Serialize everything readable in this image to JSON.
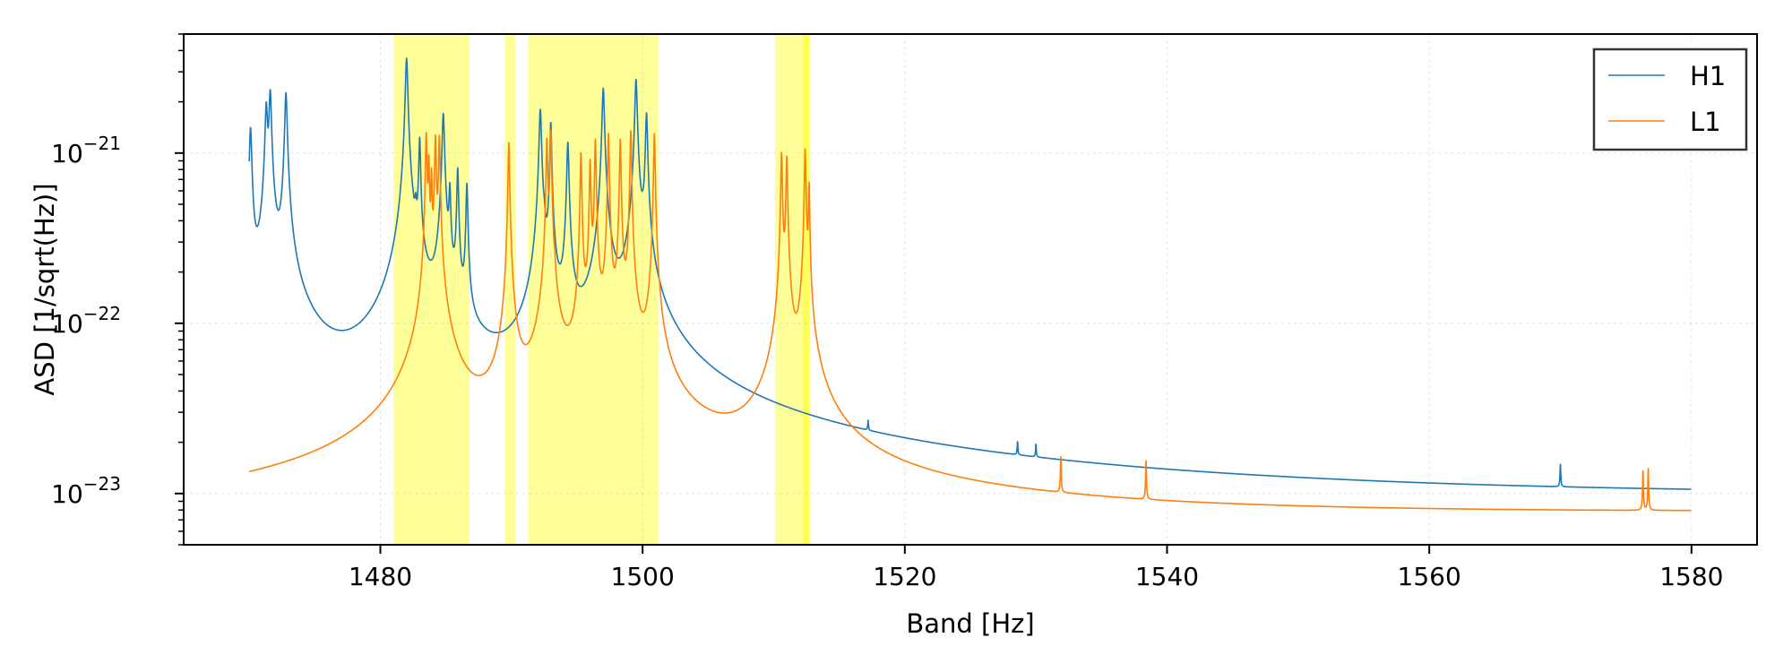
{
  "chart_data": {
    "type": "line",
    "xlabel": "Band [Hz]",
    "ylabel": "ASD [1/sqrt(Hz)]",
    "xlim": [
      1465,
      1585
    ],
    "ylim": [
      5e-24,
      5e-21
    ],
    "y_scale": "log",
    "grid": true,
    "legend_position": "top-right",
    "x_ticks": [
      1480,
      1500,
      1520,
      1540,
      1560,
      1580
    ],
    "x_tick_labels": [
      "1480",
      "1500",
      "1520",
      "1540",
      "1560",
      "1580"
    ],
    "y_ticks": [
      {
        "value": 1e-23,
        "base": "10",
        "exp": "−23"
      },
      {
        "value": 1e-22,
        "base": "10",
        "exp": "−22"
      },
      {
        "value": 1e-21,
        "base": "10",
        "exp": "−21"
      }
    ],
    "highlight_bands": [
      {
        "x0": 1481.0,
        "x1": 1486.8
      },
      {
        "x0": 1489.5,
        "x1": 1490.3
      },
      {
        "x0": 1491.3,
        "x1": 1501.2
      },
      {
        "x0": 1510.1,
        "x1": 1512.8
      },
      {
        "x0": 1512.2,
        "x1": 1512.7
      }
    ],
    "series": [
      {
        "name": "H1",
        "color": "#1f77b4",
        "x_range": [
          1470,
          1580
        ],
        "floor": [
          [
            1470,
            1.05e-23
          ],
          [
            1473,
            9.5e-24
          ],
          [
            1480,
            8.4e-24
          ],
          [
            1500,
            8.2e-24
          ],
          [
            1520,
            7.9e-24
          ],
          [
            1540,
            8e-24
          ],
          [
            1560,
            8.2e-24
          ],
          [
            1580,
            8.5e-24
          ]
        ],
        "peaks": [
          {
            "x": 1470.1,
            "y": 1.4e-21,
            "w": 0.08
          },
          {
            "x": 1471.3,
            "y": 1.9e-21,
            "w": 0.08
          },
          {
            "x": 1471.6,
            "y": 2.3e-21,
            "w": 0.08
          },
          {
            "x": 1472.8,
            "y": 2.25e-21,
            "w": 0.08
          },
          {
            "x": 1482.0,
            "y": 3.6e-21,
            "w": 0.08
          },
          {
            "x": 1482.7,
            "y": 3.4e-22,
            "w": 0.06
          },
          {
            "x": 1483.0,
            "y": 1.2e-21,
            "w": 0.06
          },
          {
            "x": 1484.8,
            "y": 1.7e-21,
            "w": 0.08
          },
          {
            "x": 1485.3,
            "y": 6e-22,
            "w": 0.06
          },
          {
            "x": 1485.9,
            "y": 8e-22,
            "w": 0.06
          },
          {
            "x": 1486.6,
            "y": 6.5e-22,
            "w": 0.06
          },
          {
            "x": 1492.2,
            "y": 1.8e-21,
            "w": 0.08
          },
          {
            "x": 1492.5,
            "y": 2.3e-22,
            "w": 0.06
          },
          {
            "x": 1493.0,
            "y": 1.5e-21,
            "w": 0.06
          },
          {
            "x": 1494.3,
            "y": 1.15e-21,
            "w": 0.07
          },
          {
            "x": 1497.0,
            "y": 2.4e-21,
            "w": 0.08
          },
          {
            "x": 1499.5,
            "y": 2.7e-21,
            "w": 0.08
          },
          {
            "x": 1500.0,
            "y": 1.6e-22,
            "w": 0.06
          },
          {
            "x": 1500.3,
            "y": 1.7e-21,
            "w": 0.07
          },
          {
            "x": 1517.2,
            "y": 1.3e-23,
            "w": 0.03
          },
          {
            "x": 1528.6,
            "y": 1.1e-23,
            "w": 0.03
          },
          {
            "x": 1530.0,
            "y": 1.05e-23,
            "w": 0.03
          },
          {
            "x": 1570.0,
            "y": 1e-23,
            "w": 0.03
          }
        ]
      },
      {
        "name": "L1",
        "color": "#ff7f0e",
        "x_range": [
          1470,
          1580
        ],
        "floor": [
          [
            1470,
            6.9e-24
          ],
          [
            1500,
            6.9e-24
          ],
          [
            1540,
            7e-24
          ],
          [
            1580,
            7.4e-24
          ]
        ],
        "peaks": [
          {
            "x": 1483.5,
            "y": 1.3e-21,
            "w": 0.05
          },
          {
            "x": 1483.7,
            "y": 9e-22,
            "w": 0.04
          },
          {
            "x": 1483.9,
            "y": 7.5e-22,
            "w": 0.04
          },
          {
            "x": 1484.2,
            "y": 1.25e-21,
            "w": 0.05
          },
          {
            "x": 1484.5,
            "y": 1.25e-21,
            "w": 0.05
          },
          {
            "x": 1489.8,
            "y": 1.15e-21,
            "w": 0.05
          },
          {
            "x": 1492.7,
            "y": 1.2e-21,
            "w": 0.05
          },
          {
            "x": 1493.0,
            "y": 1.35e-21,
            "w": 0.05
          },
          {
            "x": 1493.3,
            "y": 1.2e-22,
            "w": 0.04
          },
          {
            "x": 1495.3,
            "y": 1e-21,
            "w": 0.05
          },
          {
            "x": 1496.0,
            "y": 9e-22,
            "w": 0.05
          },
          {
            "x": 1496.4,
            "y": 1.2e-21,
            "w": 0.05
          },
          {
            "x": 1497.4,
            "y": 1.3e-21,
            "w": 0.05
          },
          {
            "x": 1498.3,
            "y": 1.2e-21,
            "w": 0.05
          },
          {
            "x": 1499.1,
            "y": 1.35e-21,
            "w": 0.05
          },
          {
            "x": 1500.9,
            "y": 1.3e-21,
            "w": 0.05
          },
          {
            "x": 1501.3,
            "y": 4e-23,
            "w": 0.04
          },
          {
            "x": 1510.6,
            "y": 1e-21,
            "w": 0.05
          },
          {
            "x": 1510.8,
            "y": 7e-23,
            "w": 0.04
          },
          {
            "x": 1511.0,
            "y": 9.5e-22,
            "w": 0.05
          },
          {
            "x": 1511.4,
            "y": 1.3e-23,
            "w": 0.04
          },
          {
            "x": 1512.4,
            "y": 1.05e-21,
            "w": 0.05
          },
          {
            "x": 1512.7,
            "y": 6.5e-22,
            "w": 0.04
          },
          {
            "x": 1531.9,
            "y": 1.3e-23,
            "w": 0.03
          },
          {
            "x": 1538.4,
            "y": 1.25e-23,
            "w": 0.03
          },
          {
            "x": 1576.3,
            "y": 1.1e-23,
            "w": 0.03
          },
          {
            "x": 1576.7,
            "y": 1.15e-23,
            "w": 0.03
          }
        ]
      }
    ]
  }
}
